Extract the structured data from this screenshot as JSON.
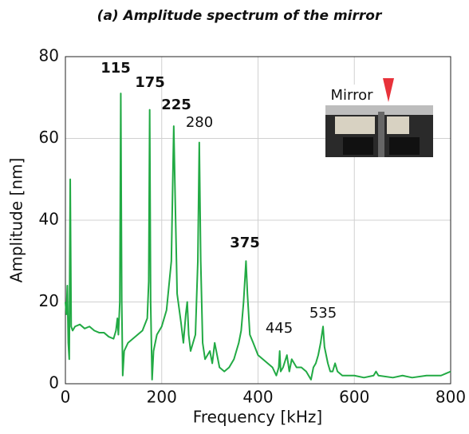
{
  "chart_data": {
    "type": "line",
    "title": "(a) Amplitude spectrum of the mirror",
    "x_label": "Frequency [kHz]",
    "y_label": "Amplitude [nm]",
    "inset_label": "Mirror",
    "xlim": [
      0,
      800
    ],
    "xticks": [
      0,
      200,
      400,
      600,
      800
    ],
    "ylim": [
      0,
      80
    ],
    "yticks": [
      0,
      20,
      40,
      60,
      80
    ],
    "grid": true,
    "annotations": [
      {
        "text": "115",
        "bold": true
      },
      {
        "text": "175",
        "bold": true
      },
      {
        "text": "225",
        "bold": true
      },
      {
        "text": "280",
        "bold": false
      },
      {
        "text": "375",
        "bold": true
      },
      {
        "text": "445",
        "bold": false
      },
      {
        "text": "535",
        "bold": false
      }
    ],
    "series": [
      {
        "color": "#22aa44",
        "x": [
          0,
          2,
          4,
          6,
          8,
          10,
          12,
          15,
          20,
          30,
          40,
          50,
          60,
          70,
          80,
          90,
          100,
          105,
          108,
          110,
          113,
          115,
          117,
          119,
          122,
          130,
          140,
          150,
          160,
          170,
          173,
          175,
          177,
          180,
          183,
          190,
          200,
          210,
          220,
          223,
          225,
          228,
          232,
          240,
          245,
          250,
          253,
          256,
          260,
          270,
          275,
          278,
          281,
          285,
          290,
          300,
          305,
          310,
          320,
          330,
          340,
          350,
          360,
          365,
          370,
          375,
          378,
          383,
          390,
          400,
          410,
          420,
          430,
          438,
          443,
          445,
          447,
          452,
          460,
          465,
          470,
          480,
          490,
          500,
          510,
          515,
          520,
          525,
          530,
          535,
          538,
          545,
          550,
          555,
          560,
          565,
          575,
          600,
          620,
          640,
          645,
          650,
          680,
          700,
          720,
          750,
          780,
          790,
          800
        ],
        "values": [
          20,
          17,
          24,
          10,
          6,
          50,
          14,
          13,
          14,
          14.5,
          13.5,
          14,
          13,
          12.5,
          12.5,
          11.5,
          11,
          13,
          16,
          12,
          20,
          71,
          20,
          2,
          8,
          10,
          11,
          12,
          13,
          16,
          25,
          67,
          20,
          1,
          8,
          12,
          14,
          18,
          30,
          50,
          63,
          45,
          22,
          15,
          10,
          17,
          20,
          12,
          8,
          12,
          30,
          59,
          30,
          10,
          6,
          8,
          5,
          10,
          4,
          3,
          4,
          6,
          10,
          13,
          20,
          30,
          22,
          12,
          10,
          7,
          6,
          5,
          4,
          2,
          4,
          8,
          3,
          4,
          7,
          3,
          6,
          4,
          4,
          3,
          1,
          4,
          5,
          7,
          10,
          14,
          9,
          5,
          3,
          3,
          5,
          3,
          2,
          2,
          1.5,
          2,
          3,
          2,
          1.5,
          2,
          1.5,
          2,
          2,
          2.5,
          3
        ]
      }
    ]
  }
}
